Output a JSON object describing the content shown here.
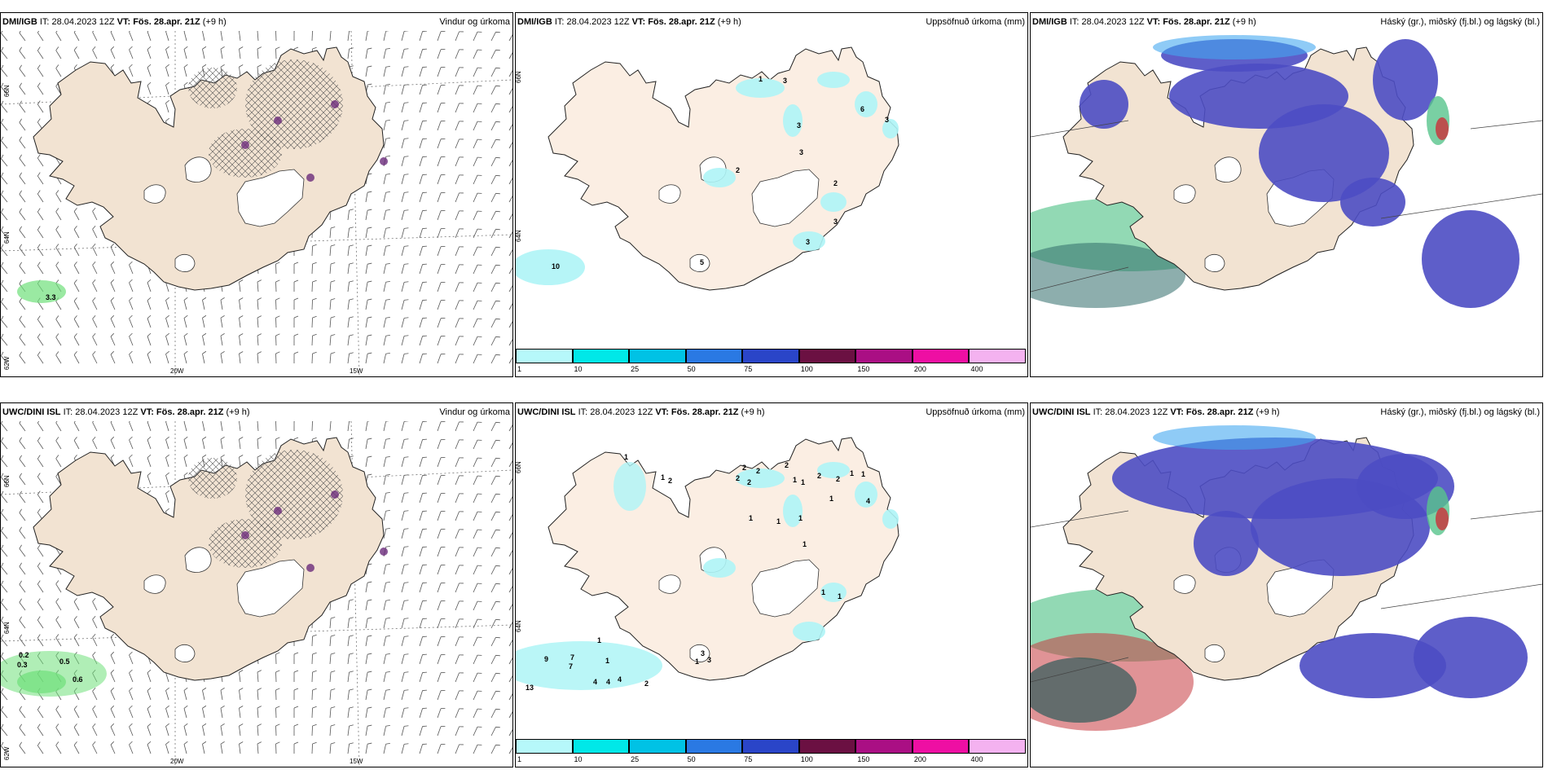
{
  "panels": [
    {
      "row": 0,
      "col": 0,
      "kind": "wind",
      "model": "DMI/IGB",
      "it": "IT: 28.04.2023 12Z",
      "vt": "VT: Fös. 28.apr. 21Z",
      "lead": "(+9 h)",
      "title": "Vindur og úrkoma",
      "lat_labels": [
        "66N",
        "64N",
        "62W"
      ],
      "lon_labels": [
        "20W",
        "15W"
      ],
      "values": [
        {
          "text": "3.3",
          "x": 55,
          "y": 330
        }
      ]
    },
    {
      "row": 0,
      "col": 1,
      "kind": "precip",
      "model": "DMI/IGB",
      "it": "IT: 28.04.2023 12Z",
      "vt": "VT: Fös. 28.apr. 21Z",
      "lead": "(+9 h)",
      "title": "Uppsöfnuð úrkoma (mm)",
      "lat_labels": [
        "66N",
        "64N"
      ],
      "values": [
        {
          "text": "3",
          "x": 328,
          "y": 64
        },
        {
          "text": "1",
          "x": 298,
          "y": 62
        },
        {
          "text": "3",
          "x": 345,
          "y": 119
        },
        {
          "text": "3",
          "x": 348,
          "y": 152
        },
        {
          "text": "6",
          "x": 423,
          "y": 99
        },
        {
          "text": "3",
          "x": 453,
          "y": 112
        },
        {
          "text": "2",
          "x": 270,
          "y": 174
        },
        {
          "text": "2",
          "x": 390,
          "y": 190
        },
        {
          "text": "3",
          "x": 390,
          "y": 237
        },
        {
          "text": "3",
          "x": 356,
          "y": 262
        },
        {
          "text": "10",
          "x": 44,
          "y": 292
        },
        {
          "text": "5",
          "x": 226,
          "y": 287
        }
      ],
      "legend": {
        "ticks": [
          "1",
          "10",
          "25",
          "50",
          "75",
          "100",
          "150",
          "200",
          "400"
        ],
        "colors": [
          "#b6f8fa",
          "#00e8e8",
          "#00c2e5",
          "#2a79e3",
          "#2a45c8",
          "#6b1042",
          "#aa0f84",
          "#ee0fa3",
          "#f4b2f0"
        ]
      }
    },
    {
      "row": 0,
      "col": 2,
      "kind": "cloud",
      "model": "DMI/IGB",
      "it": "IT: 28.04.2023 12Z",
      "vt": "VT: Fös. 28.apr. 21Z",
      "lead": "(+9 h)",
      "title": "Háský (gr.), miðský (fj.bl.) og lágský (bl.)"
    },
    {
      "row": 1,
      "col": 0,
      "kind": "wind",
      "model": "UWC/DINI ISL",
      "it": "IT: 28.04.2023 12Z",
      "vt": "VT: Fös. 28.apr. 21Z",
      "lead": "(+9 h)",
      "title": "Vindur og úrkoma",
      "lat_labels": [
        "66N",
        "64N",
        "62W"
      ],
      "lon_labels": [
        "20W",
        "15W"
      ],
      "values": [
        {
          "text": "0.2",
          "x": 22,
          "y": 290
        },
        {
          "text": "0.3",
          "x": 20,
          "y": 302
        },
        {
          "text": "0.5",
          "x": 72,
          "y": 298
        },
        {
          "text": "0.6",
          "x": 88,
          "y": 320
        }
      ]
    },
    {
      "row": 1,
      "col": 1,
      "kind": "precip",
      "model": "UWC/DINI ISL",
      "it": "IT: 28.04.2023 12Z",
      "vt": "VT: Fös. 28.apr. 21Z",
      "lead": "(+9 h)",
      "title": "Uppsöfnuð úrkoma (mm)",
      "lat_labels": [
        "66N",
        "64N"
      ],
      "values": [
        {
          "text": "1",
          "x": 133,
          "y": 47
        },
        {
          "text": "1",
          "x": 178,
          "y": 72
        },
        {
          "text": "2",
          "x": 187,
          "y": 76
        },
        {
          "text": "2",
          "x": 278,
          "y": 60
        },
        {
          "text": "2",
          "x": 270,
          "y": 73
        },
        {
          "text": "2",
          "x": 284,
          "y": 78
        },
        {
          "text": "2",
          "x": 295,
          "y": 64
        },
        {
          "text": "2",
          "x": 330,
          "y": 57
        },
        {
          "text": "1",
          "x": 340,
          "y": 75
        },
        {
          "text": "1",
          "x": 350,
          "y": 78
        },
        {
          "text": "2",
          "x": 370,
          "y": 70
        },
        {
          "text": "2",
          "x": 393,
          "y": 74
        },
        {
          "text": "1",
          "x": 410,
          "y": 67
        },
        {
          "text": "1",
          "x": 424,
          "y": 68
        },
        {
          "text": "1",
          "x": 385,
          "y": 98
        },
        {
          "text": "4",
          "x": 430,
          "y": 101
        },
        {
          "text": "1",
          "x": 286,
          "y": 122
        },
        {
          "text": "1",
          "x": 320,
          "y": 126
        },
        {
          "text": "1",
          "x": 347,
          "y": 122
        },
        {
          "text": "1",
          "x": 352,
          "y": 154
        },
        {
          "text": "1",
          "x": 375,
          "y": 213
        },
        {
          "text": "1",
          "x": 395,
          "y": 218
        },
        {
          "text": "1",
          "x": 100,
          "y": 272
        },
        {
          "text": "9",
          "x": 35,
          "y": 295
        },
        {
          "text": "7",
          "x": 67,
          "y": 293
        },
        {
          "text": "7",
          "x": 65,
          "y": 304
        },
        {
          "text": "1",
          "x": 110,
          "y": 297
        },
        {
          "text": "3",
          "x": 227,
          "y": 288
        },
        {
          "text": "1",
          "x": 220,
          "y": 298
        },
        {
          "text": "3",
          "x": 235,
          "y": 296
        },
        {
          "text": "4",
          "x": 95,
          "y": 323
        },
        {
          "text": "4",
          "x": 111,
          "y": 323
        },
        {
          "text": "4",
          "x": 125,
          "y": 320
        },
        {
          "text": "2",
          "x": 158,
          "y": 325
        },
        {
          "text": "13",
          "x": 12,
          "y": 330
        }
      ],
      "legend": {
        "ticks": [
          "1",
          "10",
          "25",
          "50",
          "75",
          "100",
          "150",
          "200",
          "400"
        ],
        "colors": [
          "#b6f8fa",
          "#00e8e8",
          "#00c2e5",
          "#2a79e3",
          "#2a45c8",
          "#6b1042",
          "#aa0f84",
          "#ee0fa3",
          "#f4b2f0"
        ]
      }
    },
    {
      "row": 1,
      "col": 2,
      "kind": "cloud",
      "model": "UWC/DINI ISL",
      "it": "IT: 28.04.2023 12Z",
      "vt": "VT: Fös. 28.apr. 21Z",
      "lead": "(+9 h)",
      "title": "Háský (gr.), miðský (fj.bl.) og lágský (bl.)"
    }
  ],
  "colors": {
    "land": "#f2e3d2",
    "land_light": "#fbeee3",
    "ice": "#ffffff",
    "blue": "#4d4dc3",
    "lightblue": "#45a8f0",
    "cyan": "#aef4f6",
    "green": "#57c48c",
    "red": "#c73a40",
    "wind": "#555555",
    "green_rain": "#6fe07a"
  }
}
